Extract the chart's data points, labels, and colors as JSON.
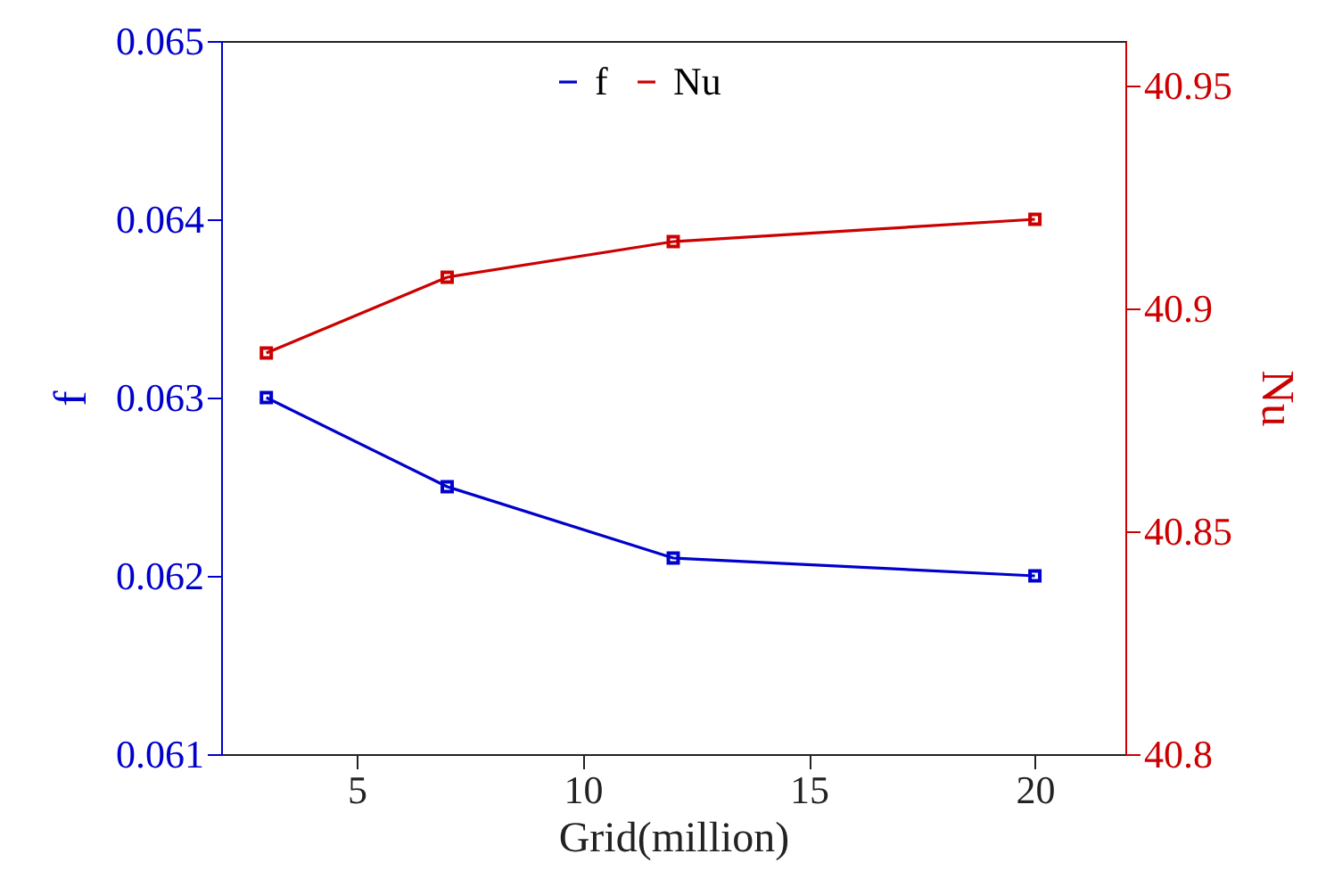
{
  "chart_data": {
    "type": "line",
    "xlabel": "Grid(million)",
    "ylabel": "f",
    "y2label": "Nu",
    "x": [
      3,
      7,
      12,
      20
    ],
    "xlim": [
      2,
      22
    ],
    "xticks": [
      5,
      10,
      15,
      20
    ],
    "ylim": [
      0.061,
      0.065
    ],
    "yticks": [
      0.061,
      0.062,
      0.063,
      0.064,
      0.065
    ],
    "y2lim": [
      40.8,
      40.96
    ],
    "y2ticks": [
      40.8,
      40.85,
      40.9,
      40.95
    ],
    "marker": "square",
    "legend": "top",
    "series": [
      {
        "name": "f",
        "color": "#0000cc",
        "values": [
          0.063,
          0.0625,
          0.0621,
          0.062
        ]
      },
      {
        "name": "Nu",
        "color": "#cc0000",
        "axis": "y2",
        "values": [
          40.89,
          40.907,
          40.915,
          40.92
        ]
      }
    ]
  }
}
